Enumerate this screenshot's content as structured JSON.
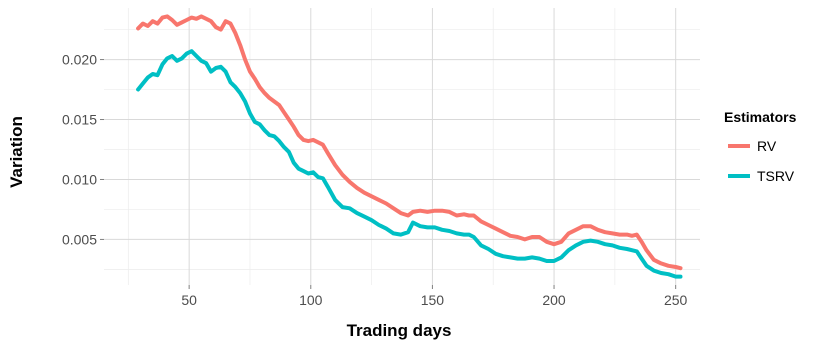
{
  "chart_data": {
    "type": "line",
    "xlabel": "Trading days",
    "ylabel": "Variation",
    "xlim": [
      15,
      260
    ],
    "ylim": [
      0.0012,
      0.0243
    ],
    "x_ticks": [
      50,
      100,
      150,
      200,
      250
    ],
    "x_tick_labels": [
      "50",
      "100",
      "150",
      "200",
      "250"
    ],
    "y_ticks": [
      0.005,
      0.01,
      0.015,
      0.02
    ],
    "y_tick_labels": [
      "0.005",
      "0.010",
      "0.015",
      "0.020"
    ],
    "grid": true,
    "legend": {
      "title": "Estimators",
      "position": "right"
    },
    "series": [
      {
        "name": "RV",
        "color": "#F8766D",
        "x": [
          29,
          31,
          33,
          35,
          37,
          39,
          41,
          43,
          45,
          47,
          49,
          51,
          53,
          55,
          57,
          59,
          61,
          63,
          65,
          67,
          69,
          71,
          73,
          75,
          77,
          79,
          81,
          83,
          85,
          87,
          89,
          91,
          93,
          95,
          97,
          99,
          101,
          103,
          105,
          107,
          110,
          113,
          116,
          119,
          122,
          125,
          128,
          131,
          134,
          137,
          140,
          142,
          145,
          148,
          151,
          154,
          157,
          160,
          163,
          165,
          167,
          170,
          173,
          176,
          179,
          182,
          185,
          188,
          191,
          194,
          197,
          200,
          203,
          206,
          209,
          212,
          215,
          218,
          221,
          224,
          227,
          230,
          232,
          234,
          236,
          238,
          241,
          244,
          247,
          250,
          252
        ],
        "values": [
          0.0226,
          0.023,
          0.0228,
          0.0232,
          0.023,
          0.0235,
          0.0236,
          0.0233,
          0.0229,
          0.0231,
          0.0233,
          0.0235,
          0.0234,
          0.0236,
          0.0234,
          0.0232,
          0.0227,
          0.0225,
          0.0232,
          0.023,
          0.0222,
          0.0212,
          0.02,
          0.019,
          0.0184,
          0.0177,
          0.0172,
          0.0168,
          0.0165,
          0.0162,
          0.0156,
          0.015,
          0.0144,
          0.0137,
          0.0133,
          0.0132,
          0.0133,
          0.0131,
          0.0129,
          0.0122,
          0.0112,
          0.0104,
          0.0098,
          0.0093,
          0.0089,
          0.0086,
          0.0083,
          0.008,
          0.0076,
          0.0072,
          0.007,
          0.0073,
          0.0074,
          0.0073,
          0.0074,
          0.0074,
          0.0073,
          0.007,
          0.0071,
          0.007,
          0.007,
          0.0065,
          0.0062,
          0.0059,
          0.0056,
          0.0053,
          0.0052,
          0.005,
          0.0052,
          0.0052,
          0.0048,
          0.0046,
          0.0048,
          0.0055,
          0.0058,
          0.0061,
          0.0061,
          0.0058,
          0.0056,
          0.0055,
          0.0054,
          0.0054,
          0.0053,
          0.0054,
          0.0048,
          0.0041,
          0.0033,
          0.003,
          0.0028,
          0.0027,
          0.0026
        ]
      },
      {
        "name": "TSRV",
        "color": "#00BFC4",
        "x": [
          29,
          31,
          33,
          35,
          37,
          39,
          41,
          43,
          45,
          47,
          49,
          51,
          53,
          55,
          57,
          59,
          61,
          63,
          65,
          67,
          69,
          71,
          73,
          75,
          77,
          79,
          81,
          83,
          85,
          87,
          89,
          91,
          93,
          95,
          97,
          99,
          101,
          103,
          105,
          107,
          110,
          113,
          116,
          119,
          122,
          125,
          128,
          131,
          134,
          137,
          140,
          142,
          145,
          148,
          151,
          154,
          157,
          160,
          163,
          165,
          167,
          170,
          173,
          176,
          179,
          182,
          185,
          188,
          191,
          194,
          197,
          200,
          203,
          206,
          209,
          212,
          215,
          218,
          221,
          224,
          227,
          230,
          232,
          234,
          236,
          238,
          241,
          244,
          247,
          250,
          252
        ],
        "values": [
          0.0175,
          0.018,
          0.0185,
          0.0188,
          0.0187,
          0.0196,
          0.0201,
          0.0203,
          0.0199,
          0.0201,
          0.0205,
          0.0207,
          0.0203,
          0.0199,
          0.0197,
          0.019,
          0.0193,
          0.0194,
          0.019,
          0.0181,
          0.0177,
          0.0172,
          0.0165,
          0.0155,
          0.0148,
          0.0146,
          0.0141,
          0.0137,
          0.0136,
          0.0132,
          0.0127,
          0.0123,
          0.0114,
          0.0109,
          0.0107,
          0.0105,
          0.0106,
          0.0102,
          0.0101,
          0.0094,
          0.0083,
          0.0077,
          0.0076,
          0.0072,
          0.0069,
          0.0066,
          0.0062,
          0.0059,
          0.0055,
          0.0054,
          0.0056,
          0.0064,
          0.0061,
          0.006,
          0.006,
          0.0058,
          0.0057,
          0.0055,
          0.0054,
          0.0054,
          0.0052,
          0.0045,
          0.0042,
          0.0038,
          0.0036,
          0.0035,
          0.0034,
          0.0034,
          0.0035,
          0.0034,
          0.0032,
          0.0032,
          0.0035,
          0.0041,
          0.0045,
          0.0048,
          0.0049,
          0.0048,
          0.0046,
          0.0045,
          0.0043,
          0.0042,
          0.0041,
          0.004,
          0.0034,
          0.0028,
          0.0024,
          0.0022,
          0.0021,
          0.0019,
          0.0019
        ]
      }
    ]
  }
}
